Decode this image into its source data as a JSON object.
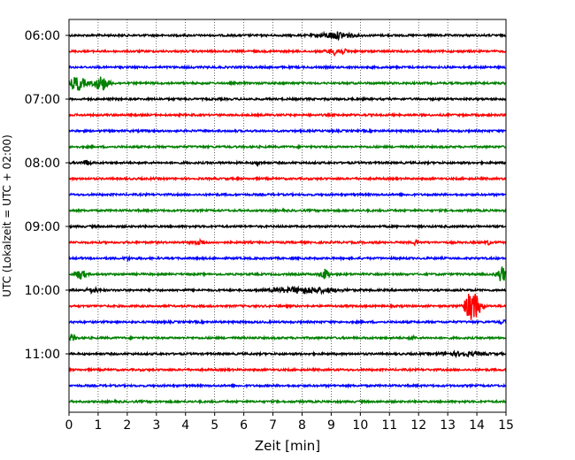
{
  "chart_data": {
    "type": "line",
    "title": "",
    "xlabel": "Zeit  [min]",
    "ylabel": "UTC (Lokalzeit = UTC + 02:00)",
    "xlim": [
      0,
      15
    ],
    "x_ticks": [
      0,
      1,
      2,
      3,
      4,
      5,
      6,
      7,
      8,
      9,
      10,
      11,
      12,
      13,
      14,
      15
    ],
    "y_ticks": [
      "06:00",
      "07:00",
      "08:00",
      "09:00",
      "10:00",
      "11:00"
    ],
    "grid": "vertical-dotted",
    "trace_interval_min": 15,
    "trace_colors": [
      "#000000",
      "#ff0000",
      "#0000ff",
      "#008000"
    ],
    "traces": [
      {
        "start": "06:00",
        "events": [
          {
            "t": 9.2,
            "amp": 0.6,
            "dur": 1.0
          }
        ]
      },
      {
        "start": "06:15",
        "events": [
          {
            "t": 9.2,
            "amp": 0.6,
            "dur": 0.6
          }
        ]
      },
      {
        "start": "06:30",
        "events": []
      },
      {
        "start": "06:45",
        "events": [
          {
            "t": 0.3,
            "amp": 1.3,
            "dur": 0.5
          },
          {
            "t": 1.1,
            "amp": 1.3,
            "dur": 0.5
          }
        ]
      },
      {
        "start": "07:00",
        "events": []
      },
      {
        "start": "07:15",
        "events": []
      },
      {
        "start": "07:30",
        "events": []
      },
      {
        "start": "07:45",
        "events": []
      },
      {
        "start": "08:00",
        "events": [
          {
            "t": 0.6,
            "amp": 0.4,
            "dur": 0.3
          },
          {
            "t": 6.5,
            "amp": 0.3,
            "dur": 0.2
          }
        ]
      },
      {
        "start": "08:15",
        "events": []
      },
      {
        "start": "08:30",
        "events": []
      },
      {
        "start": "08:45",
        "events": []
      },
      {
        "start": "09:00",
        "events": []
      },
      {
        "start": "09:15",
        "events": [
          {
            "t": 4.5,
            "amp": 0.5,
            "dur": 0.3
          },
          {
            "t": 11.9,
            "amp": 1.0,
            "dur": 0.1
          },
          {
            "t": 14.4,
            "amp": 0.4,
            "dur": 0.1
          }
        ]
      },
      {
        "start": "09:30",
        "events": [
          {
            "t": 2.0,
            "amp": 0.3,
            "dur": 0.2
          }
        ]
      },
      {
        "start": "09:45",
        "events": [
          {
            "t": 0.4,
            "amp": 0.9,
            "dur": 0.3
          },
          {
            "t": 8.8,
            "amp": 0.9,
            "dur": 0.3
          },
          {
            "t": 14.85,
            "amp": 1.5,
            "dur": 0.3
          }
        ]
      },
      {
        "start": "10:00",
        "events": [
          {
            "t": 0.8,
            "amp": 0.4,
            "dur": 0.4
          },
          {
            "t": 8.1,
            "amp": 0.5,
            "dur": 2.0
          }
        ]
      },
      {
        "start": "10:15",
        "events": [
          {
            "t": 13.85,
            "amp": 3.0,
            "dur": 0.5
          }
        ]
      },
      {
        "start": "10:30",
        "events": [
          {
            "t": 14.9,
            "amp": 0.3,
            "dur": 0.2
          }
        ]
      },
      {
        "start": "10:45",
        "events": [
          {
            "t": 0.1,
            "amp": 0.5,
            "dur": 0.3
          },
          {
            "t": 11.8,
            "amp": 0.3,
            "dur": 0.2
          }
        ]
      },
      {
        "start": "11:00",
        "events": [
          {
            "t": 13.5,
            "amp": 0.3,
            "dur": 1.5
          }
        ]
      },
      {
        "start": "11:15",
        "events": []
      },
      {
        "start": "11:30",
        "events": []
      },
      {
        "start": "11:45",
        "events": []
      }
    ]
  }
}
